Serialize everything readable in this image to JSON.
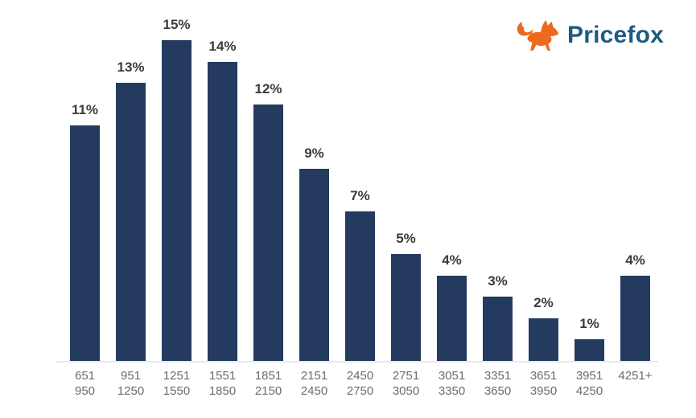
{
  "logo": {
    "text": "Pricefox",
    "text_color": "#1E5B82",
    "fox_color": "#EC6A1E"
  },
  "chart_data": {
    "type": "bar",
    "categories": [
      [
        "651",
        "950"
      ],
      [
        "951",
        "1250"
      ],
      [
        "1251",
        "1550"
      ],
      [
        "1551",
        "1850"
      ],
      [
        "1851",
        "2150"
      ],
      [
        "2151",
        "2450"
      ],
      [
        "2450",
        "2750"
      ],
      [
        "2751",
        "3050"
      ],
      [
        "3051",
        "3350"
      ],
      [
        "3351",
        "3650"
      ],
      [
        "3651",
        "3950"
      ],
      [
        "3951",
        "4250"
      ],
      [
        "4251+"
      ]
    ],
    "values": [
      11,
      13,
      15,
      14,
      12,
      9,
      7,
      5,
      4,
      3,
      2,
      1,
      4
    ],
    "value_labels": [
      "11%",
      "13%",
      "15%",
      "14%",
      "12%",
      "9%",
      "7%",
      "5%",
      "4%",
      "3%",
      "2%",
      "1%",
      "4%"
    ],
    "title": "",
    "xlabel": "",
    "ylabel": "",
    "ylim": [
      0,
      16
    ],
    "grid": false,
    "legend": false,
    "bar_color": "#243A5F",
    "value_label_color": "#3C3C3C",
    "tick_label_color": "#6B6B6B",
    "axis_line_color": "#E6EAEE"
  }
}
